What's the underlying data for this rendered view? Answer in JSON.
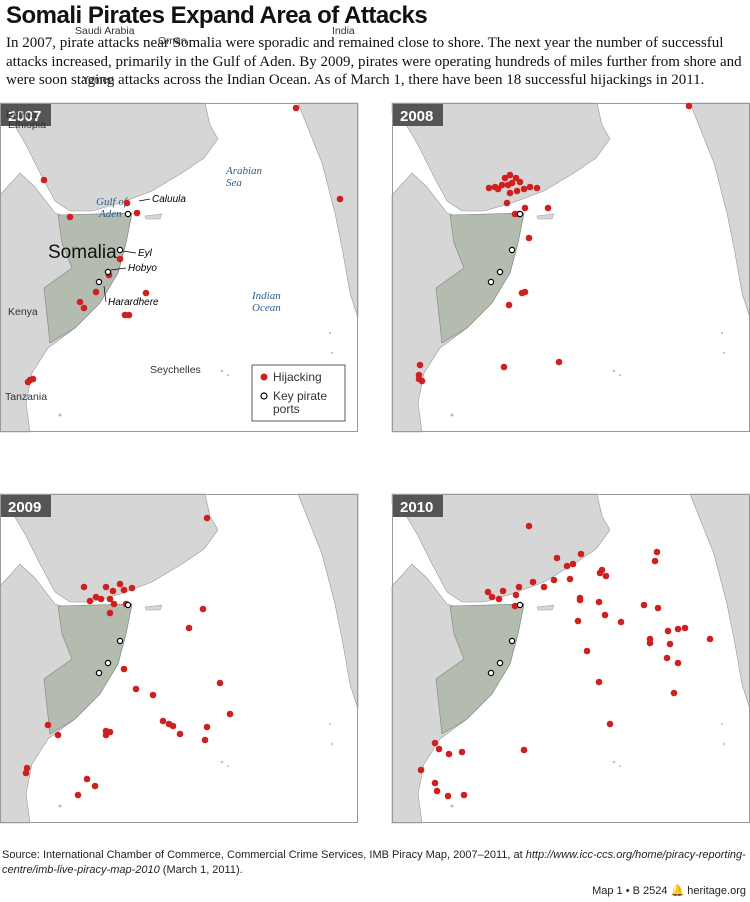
{
  "header": {
    "title": "Somali Pirates Expand Area of Attacks",
    "intro": "In 2007, pirate attacks near Somalia were sporadic and remained close to shore. The next year the number of successful attacks increased, primarily in the Gulf of Aden. By 2009, pirates were operating hundreds of miles further from shore and were soon staging attacks across the Indian Ocean. As of March 1, there have been 18 successful hijackings in 2011."
  },
  "maps": [
    {
      "year": "2007",
      "labels": [
        "Saudi Arabia",
        "Oman",
        "India",
        "Yemen",
        "Eritrea",
        "Ethiopia",
        "Somalia",
        "Kenya",
        "Seychelles",
        "Tanzania"
      ],
      "seas": [
        [
          "Arabian",
          "Sea"
        ],
        [
          "Gulf of",
          "Aden"
        ],
        [
          "Indian",
          "Ocean"
        ]
      ],
      "ports": [
        "Caluula",
        "Eyl",
        "Hobyo",
        "Harardhere"
      ]
    },
    {
      "year": "2008"
    },
    {
      "year": "2009"
    },
    {
      "year": "2010"
    }
  ],
  "legend": {
    "hijacking": "Hijacking",
    "ports": [
      "Key pirate",
      "ports"
    ]
  },
  "source": {
    "label": "Source:",
    "text": "International Chamber of Commerce, Commercial Crime Services, IMB Piracy Map, 2007–2011, at",
    "url": "http://www.icc-ccs.org/home/piracy-reporting-centre/imb-live-piracy-map-2010",
    "date": "(March 1, 2011)."
  },
  "footer": {
    "map": "Map 1 • B 2524",
    "site": "heritage.org"
  }
}
